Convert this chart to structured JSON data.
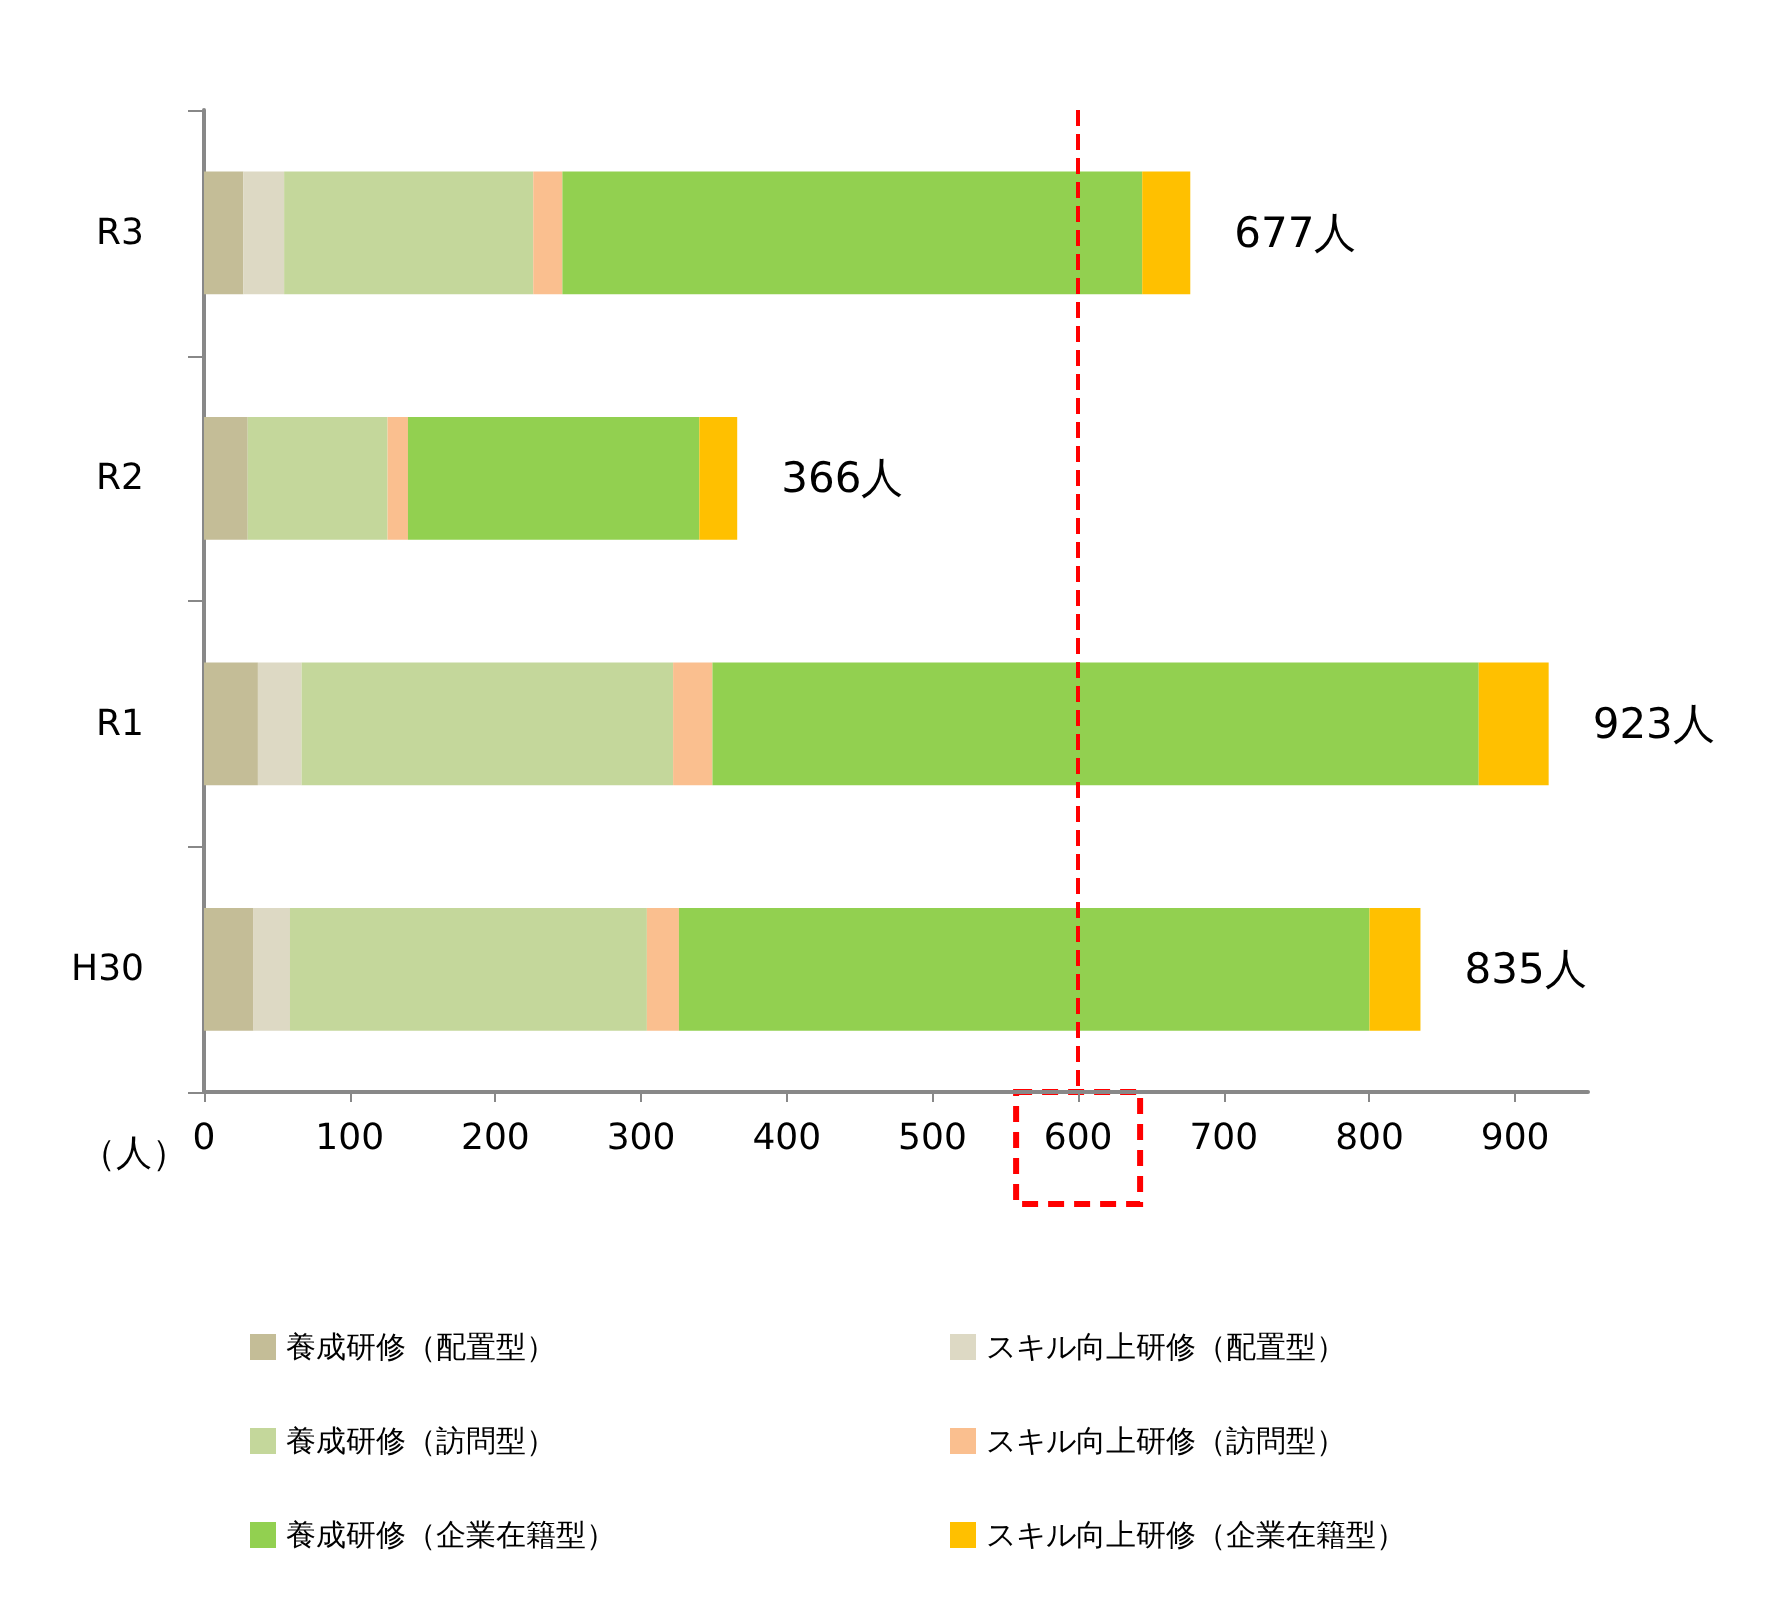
{
  "chart_data": {
    "type": "bar",
    "orientation": "horizontal",
    "stacked": true,
    "categories": [
      "R3",
      "R2",
      "R1",
      "H30"
    ],
    "xlabel": "（人）",
    "xlim": [
      0,
      950
    ],
    "xticks": [
      0,
      100,
      200,
      300,
      400,
      500,
      600,
      700,
      800,
      900
    ],
    "grid": false,
    "legend": "bottom",
    "series": [
      {
        "name": "養成研修（配置型）",
        "color": "#c4bd97",
        "values": [
          27,
          30,
          37,
          34
        ]
      },
      {
        "name": "スキル向上研修（配置型）",
        "color": "#ddd9c4",
        "values": [
          28,
          0,
          30,
          25
        ]
      },
      {
        "name": "養成研修（訪問型）",
        "color": "#c4d79b",
        "values": [
          171,
          96,
          255,
          245
        ]
      },
      {
        "name": "スキル向上研修（訪問型）",
        "color": "#fabf8f",
        "values": [
          20,
          14,
          27,
          22
        ]
      },
      {
        "name": "養成研修（企業在籍型）",
        "color": "#92d050",
        "values": [
          398,
          200,
          526,
          474
        ]
      },
      {
        "name": "スキル向上研修（企業在籍型）",
        "color": "#ffc000",
        "values": [
          33,
          26,
          48,
          35
        ]
      }
    ],
    "totals": [
      "677人",
      "366人",
      "923人",
      "835人"
    ],
    "ref_lines": [
      {
        "axis": "x",
        "value": 600,
        "color": "#ff0000",
        "line_style": "dashed",
        "label": null
      }
    ]
  }
}
